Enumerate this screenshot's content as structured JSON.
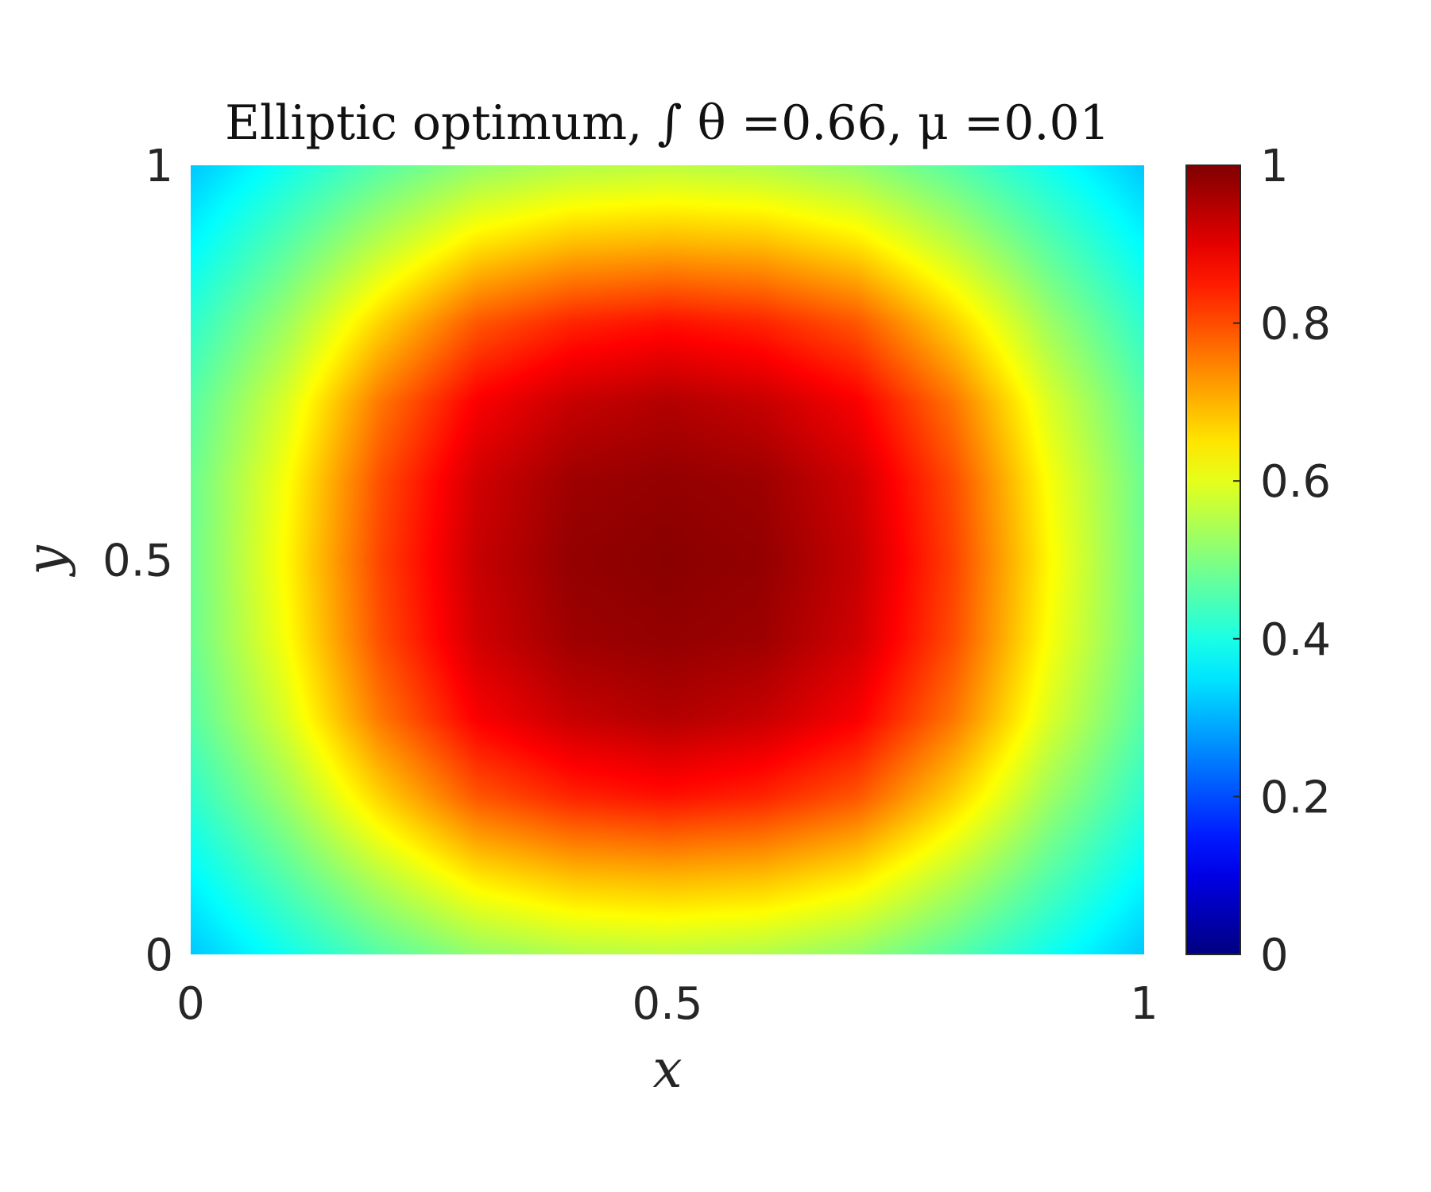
{
  "chart_data": {
    "type": "heatmap",
    "title": "Elliptic optimum, ∫ θ =0.66, μ =0.01",
    "xlabel": "x",
    "ylabel": "y",
    "xlim": [
      0,
      1
    ],
    "ylim": [
      0,
      1
    ],
    "x_ticks": [
      {
        "value": 0,
        "label": "0"
      },
      {
        "value": 0.5,
        "label": "0.5"
      },
      {
        "value": 1,
        "label": "1"
      }
    ],
    "y_ticks": [
      {
        "value": 0,
        "label": "0"
      },
      {
        "value": 0.5,
        "label": "0.5"
      },
      {
        "value": 1,
        "label": "1"
      }
    ],
    "colorbar": {
      "colormap": "jet",
      "clim": [
        0,
        1
      ],
      "ticks": [
        {
          "value": 0,
          "label": "0"
        },
        {
          "value": 0.2,
          "label": "0.2"
        },
        {
          "value": 0.4,
          "label": "0.4"
        },
        {
          "value": 0.6,
          "label": "0.6"
        },
        {
          "value": 0.8,
          "label": "0.8"
        },
        {
          "value": 1,
          "label": "1"
        }
      ]
    },
    "field": {
      "description_values": "approximate sampled grid of theta(x,y), rows are y from 0 to 1, columns are x from 0 to 1",
      "x": [
        0,
        0.1,
        0.2,
        0.3,
        0.4,
        0.5,
        0.6,
        0.7,
        0.8,
        0.9,
        1.0
      ],
      "y": [
        0,
        0.1,
        0.2,
        0.3,
        0.4,
        0.5,
        0.6,
        0.7,
        0.8,
        0.9,
        1.0
      ],
      "z": [
        [
          0.32,
          0.39,
          0.46,
          0.52,
          0.55,
          0.56,
          0.55,
          0.52,
          0.46,
          0.39,
          0.32
        ],
        [
          0.37,
          0.46,
          0.56,
          0.65,
          0.69,
          0.7,
          0.69,
          0.65,
          0.56,
          0.46,
          0.37
        ],
        [
          0.42,
          0.53,
          0.67,
          0.79,
          0.84,
          0.86,
          0.84,
          0.79,
          0.67,
          0.53,
          0.42
        ],
        [
          0.46,
          0.59,
          0.76,
          0.88,
          0.93,
          0.95,
          0.93,
          0.88,
          0.76,
          0.59,
          0.46
        ],
        [
          0.48,
          0.62,
          0.8,
          0.92,
          0.97,
          0.98,
          0.97,
          0.92,
          0.8,
          0.62,
          0.48
        ],
        [
          0.48,
          0.63,
          0.81,
          0.93,
          0.98,
          0.99,
          0.98,
          0.93,
          0.81,
          0.63,
          0.48
        ],
        [
          0.48,
          0.62,
          0.8,
          0.92,
          0.97,
          0.98,
          0.97,
          0.92,
          0.8,
          0.62,
          0.48
        ],
        [
          0.46,
          0.59,
          0.76,
          0.88,
          0.93,
          0.95,
          0.93,
          0.88,
          0.76,
          0.59,
          0.46
        ],
        [
          0.42,
          0.53,
          0.67,
          0.79,
          0.84,
          0.86,
          0.84,
          0.79,
          0.67,
          0.53,
          0.42
        ],
        [
          0.37,
          0.46,
          0.56,
          0.65,
          0.69,
          0.7,
          0.69,
          0.65,
          0.56,
          0.46,
          0.37
        ],
        [
          0.32,
          0.39,
          0.46,
          0.52,
          0.55,
          0.56,
          0.55,
          0.52,
          0.46,
          0.39,
          0.32
        ]
      ]
    }
  }
}
